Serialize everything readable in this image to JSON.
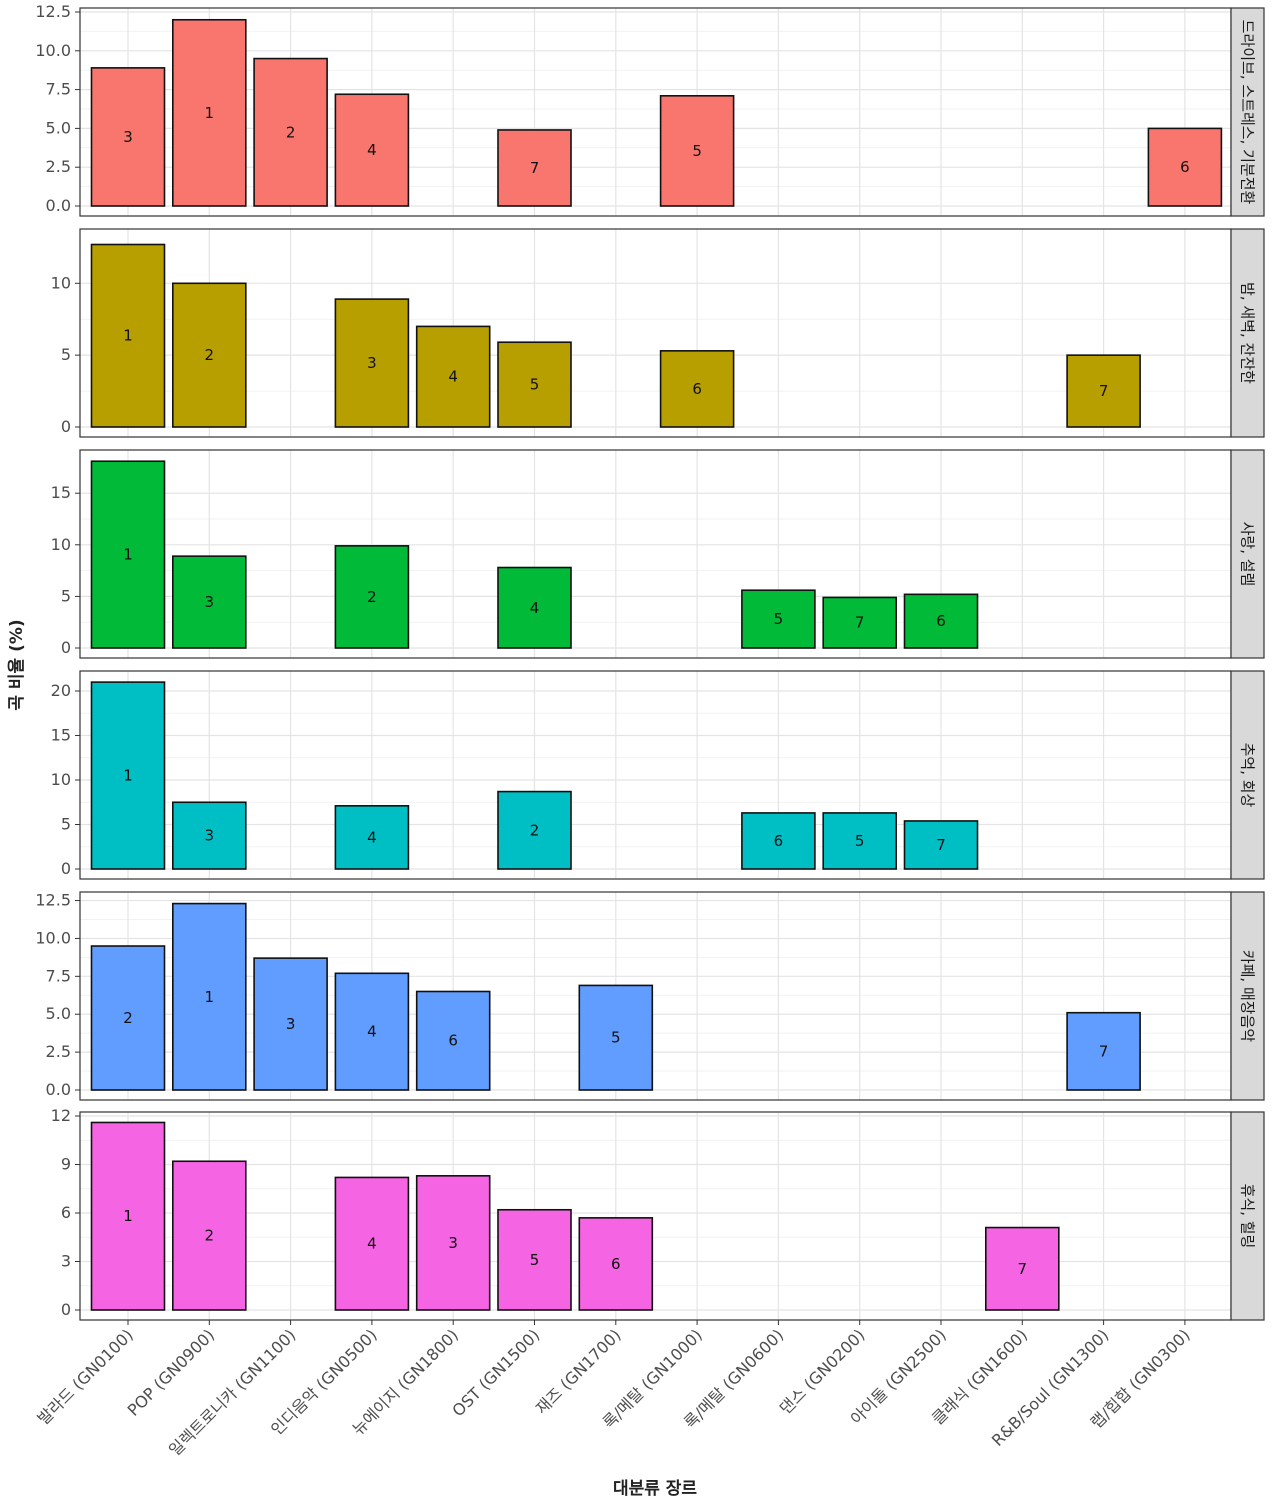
{
  "chart_data": {
    "type": "bar",
    "xlabel": "대분류 장르",
    "ylabel": "곡 비율 (%)",
    "categories": [
      "발라드 (GN0100)",
      "POP (GN0900)",
      "일렉트로니카 (GN1100)",
      "인디음악 (GN0500)",
      "뉴에이지 (GN1800)",
      "OST (GN1500)",
      "재즈 (GN1700)",
      "록/메탈 (GN1000)",
      "록/메탈 (GN0600)",
      "댄스 (GN0200)",
      "아이돌 (GN2500)",
      "클래식 (GN1600)",
      "R&B/Soul (GN1300)",
      "랩/힙합 (GN0300)"
    ],
    "grid": true,
    "legend": "none",
    "panels": [
      {
        "name": "드라이브, 스트레스, 기분전환",
        "color": "#F8766D",
        "ylim": [
          0,
          12.5
        ],
        "yticks": [
          0,
          2.5,
          5,
          7.5,
          10,
          12.5
        ],
        "ytick_labels": [
          "0.0",
          "2.5",
          "5.0",
          "7.5",
          "10.0",
          "12.5"
        ],
        "values": [
          8.9,
          12.0,
          9.5,
          7.2,
          null,
          4.9,
          null,
          7.1,
          null,
          null,
          null,
          null,
          null,
          5.0
        ],
        "ranks": [
          "3",
          "1",
          "2",
          "4",
          null,
          "7",
          null,
          "5",
          null,
          null,
          null,
          null,
          null,
          "6"
        ]
      },
      {
        "name": "밤, 새벽, 잔잔한",
        "color": "#B79F00",
        "ylim": [
          0,
          13.5
        ],
        "yticks": [
          0,
          5,
          10
        ],
        "ytick_labels": [
          "0",
          "5",
          "10"
        ],
        "values": [
          12.7,
          10.0,
          null,
          8.9,
          7.0,
          5.9,
          null,
          5.3,
          null,
          null,
          null,
          null,
          5.0,
          null
        ],
        "ranks": [
          "1",
          "2",
          null,
          "3",
          "4",
          "5",
          null,
          "6",
          null,
          null,
          null,
          null,
          "7",
          null
        ]
      },
      {
        "name": "사랑, 설렘",
        "color": "#00BA38",
        "ylim": [
          0,
          18.8
        ],
        "yticks": [
          0,
          5,
          10,
          15
        ],
        "ytick_labels": [
          "0",
          "5",
          "10",
          "15"
        ],
        "values": [
          18.1,
          8.9,
          null,
          9.9,
          null,
          7.8,
          null,
          null,
          5.6,
          4.9,
          5.2,
          null,
          null,
          null
        ],
        "ranks": [
          "1",
          "3",
          null,
          "2",
          null,
          "4",
          null,
          null,
          "5",
          "7",
          "6",
          null,
          null,
          null
        ]
      },
      {
        "name": "추억, 회상",
        "color": "#00BFC4",
        "ylim": [
          0,
          21.8
        ],
        "yticks": [
          0,
          5,
          10,
          15,
          20
        ],
        "ytick_labels": [
          "0",
          "5",
          "10",
          "15",
          "20"
        ],
        "values": [
          21.0,
          7.5,
          null,
          7.1,
          null,
          8.7,
          null,
          null,
          6.3,
          6.3,
          5.4,
          null,
          null,
          null
        ],
        "ranks": [
          "1",
          "3",
          null,
          "4",
          null,
          "2",
          null,
          null,
          "6",
          "5",
          "7",
          null,
          null,
          null
        ]
      },
      {
        "name": "카페, 매장음악",
        "color": "#619CFF",
        "ylim": [
          0,
          12.8
        ],
        "yticks": [
          0,
          2.5,
          5,
          7.5,
          10,
          12.5
        ],
        "ytick_labels": [
          "0.0",
          "2.5",
          "5.0",
          "7.5",
          "10.0",
          "12.5"
        ],
        "values": [
          9.5,
          12.3,
          null,
          7.7,
          6.5,
          null,
          6.9,
          null,
          null,
          null,
          null,
          null,
          5.1,
          null
        ],
        "ranks": [
          "2",
          "1",
          null,
          "4",
          "6",
          null,
          "5",
          null,
          null,
          null,
          null,
          null,
          "7",
          null
        ],
        "extra": {
          "index": 2,
          "value": 8.7,
          "rank": "3"
        }
      },
      {
        "name": "휴식, 힐링",
        "color": "#F564E3",
        "ylim": [
          0,
          12.0
        ],
        "yticks": [
          0,
          3,
          6,
          9,
          12
        ],
        "ytick_labels": [
          "0",
          "3",
          "6",
          "9",
          "12"
        ],
        "values": [
          11.6,
          9.2,
          null,
          8.2,
          8.3,
          6.2,
          5.7,
          null,
          null,
          null,
          null,
          5.1,
          null,
          null
        ],
        "ranks": [
          "1",
          "2",
          null,
          "4",
          "3",
          "5",
          "6",
          null,
          null,
          null,
          null,
          "7",
          null,
          null
        ]
      }
    ]
  }
}
